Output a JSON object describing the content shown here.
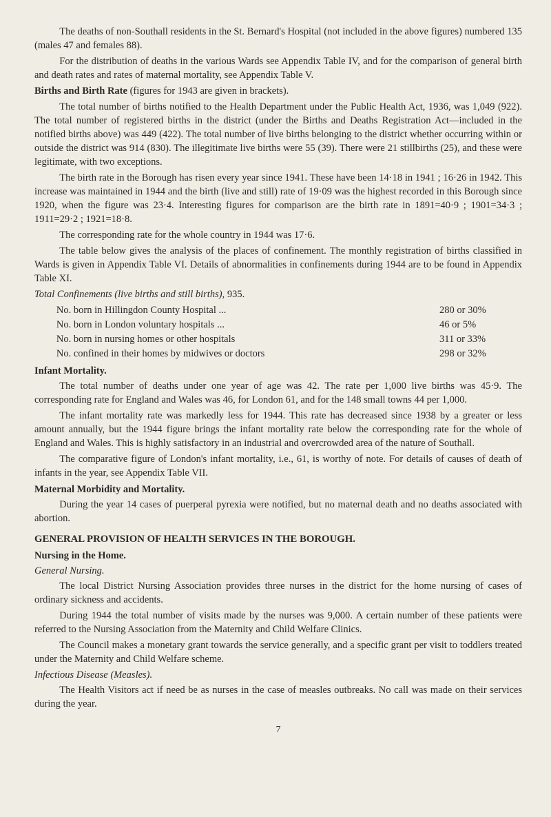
{
  "page": {
    "background_color": "#f0ede4",
    "text_color": "#2a2a2a",
    "font_family": "Georgia, 'Times New Roman', serif",
    "font_size_pt": 11,
    "page_number": "7"
  },
  "paragraphs": {
    "p1": "The deaths of non-Southall residents in the St. Bernard's Hospital (not included in the above figures) numbered 135 (males 47 and females 88).",
    "p2": "For the distribution of deaths in the various Wards see Appendix Table IV, and for the comparison of general birth and death rates and rates of maternal mortality, see Appendix Table V.",
    "p3_heading": "Births and Birth Rate",
    "p3_tail": " (figures for 1943 are given in brackets).",
    "p4": "The total number of births notified to the Health Department under the Public Health Act, 1936, was 1,049 (922). The total number of registered births in the district (under the Births and Deaths Registration Act—included in the notified births above) was 449 (422). The total number of live births belonging to the district whether occurring within or outside the district was 914 (830). The illegitimate live births were 55 (39). There were 21 stillbirths (25), and these were legitimate, with two exceptions.",
    "p5": "The birth rate in the Borough has risen every year since 1941. These have been 14·18 in 1941 ; 16·26 in 1942. This increase was maintained in 1944 and the birth (live and still) rate of 19·09 was the highest recorded in this Borough since 1920, when the figure was 23·4. Interesting figures for comparison are the birth rate in 1891=40·9 ; 1901=34·3 ; 1911=29·2 ; 1921=18·8.",
    "p6": "The corresponding rate for the whole country in 1944 was 17·6.",
    "p7": "The table below gives the analysis of the places of confinement. The monthly registration of births classified in Wards is given in Appendix Table VI. Details of abnormalities in confinements during 1944 are to be found in Appendix Table XI.",
    "p8_ital": "Total Confinements (live births and still births),",
    "p8_tail": " 935.",
    "infant_mortality_heading": "Infant Mortality.",
    "p9": "The total number of deaths under one year of age was 42. The rate per 1,000 live births was 45·9. The corresponding rate for England and Wales was 46, for London 61, and for the 148 small towns 44 per 1,000.",
    "p10": "The infant mortality rate was markedly less for 1944. This rate has decreased since 1938 by a greater or less amount annually, but the 1944 figure brings the infant mortality rate below the corresponding rate for the whole of England and Wales. This is highly satisfactory in an industrial and overcrowded area of the nature of Southall.",
    "p11": "The comparative figure of London's infant mortality, i.e., 61, is worthy of note. For details of causes of death of infants in the year, see Appendix Table VII.",
    "maternal_heading": "Maternal Morbidity and Mortality.",
    "p12": "During the year 14 cases of puerperal pyrexia were notified, but no maternal death and no deaths associated with abortion.",
    "general_provision_heading": "GENERAL PROVISION OF HEALTH SERVICES IN THE BOROUGH.",
    "nursing_heading": "Nursing in the Home.",
    "general_nursing_heading": "General Nursing.",
    "p13": "The local District Nursing Association provides three nurses in the district for the home nursing of cases of ordinary sickness and accidents.",
    "p14": "During 1944 the total number of visits made by the nurses was 9,000. A certain number of these patients were referred to the Nursing Association from the Maternity and Child Welfare Clinics.",
    "p15": "The Council makes a monetary grant towards the service generally, and a specific grant per visit to toddlers treated under the Maternity and Child Welfare scheme.",
    "infectious_heading": "Infectious Disease (Measles).",
    "p16": "The Health Visitors act if need be as nurses in the case of measles outbreaks. No call was made on their services during the year."
  },
  "confinements_list": {
    "rows": [
      {
        "label": "No. born in Hillingdon County Hospital ...",
        "value": "280 or 30%"
      },
      {
        "label": "No. born in London voluntary hospitals ...",
        "value": "46 or 5%"
      },
      {
        "label": "No. born in nursing homes or other hospitals",
        "value": "311 or 33%"
      },
      {
        "label": "No. confined in their homes by midwives or doctors",
        "value": "298 or 32%"
      }
    ]
  }
}
